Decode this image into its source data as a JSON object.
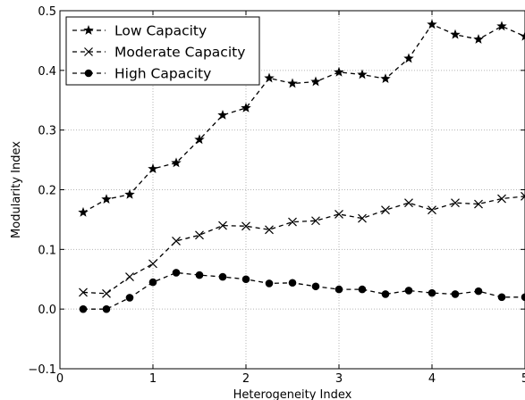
{
  "chart_data": {
    "type": "line",
    "xlabel": "Heterogeneity Index",
    "ylabel": "Modularity Index",
    "xlim": [
      0,
      5
    ],
    "ylim": [
      -0.1,
      0.5
    ],
    "xticks": [
      "0",
      "1",
      "2",
      "3",
      "4",
      "5"
    ],
    "yticks": [
      "−0.1",
      "0.0",
      "0.1",
      "0.2",
      "0.3",
      "0.4",
      "0.5"
    ],
    "grid": true,
    "legend_position": "top-left",
    "x": [
      0.25,
      0.5,
      0.75,
      1.0,
      1.25,
      1.5,
      1.75,
      2.0,
      2.25,
      2.5,
      2.75,
      3.0,
      3.25,
      3.5,
      3.75,
      4.0,
      4.25,
      4.5,
      4.75,
      5.0
    ],
    "series": [
      {
        "name": "Low Capacity",
        "marker": "star",
        "values": [
          0.162,
          0.184,
          0.192,
          0.235,
          0.245,
          0.284,
          0.325,
          0.337,
          0.387,
          0.378,
          0.381,
          0.397,
          0.393,
          0.386,
          0.42,
          0.477,
          0.46,
          0.452,
          0.474,
          0.457
        ]
      },
      {
        "name": "Moderate Capacity",
        "marker": "x",
        "values": [
          0.028,
          0.026,
          0.054,
          0.076,
          0.114,
          0.124,
          0.14,
          0.139,
          0.133,
          0.146,
          0.148,
          0.159,
          0.152,
          0.166,
          0.178,
          0.166,
          0.178,
          0.176,
          0.185,
          0.189
        ]
      },
      {
        "name": "High Capacity",
        "marker": "circle",
        "values": [
          0.0,
          0.0,
          0.019,
          0.045,
          0.061,
          0.057,
          0.054,
          0.05,
          0.043,
          0.044,
          0.038,
          0.033,
          0.033,
          0.025,
          0.031,
          0.027,
          0.025,
          0.03,
          0.02,
          0.02
        ]
      }
    ]
  }
}
